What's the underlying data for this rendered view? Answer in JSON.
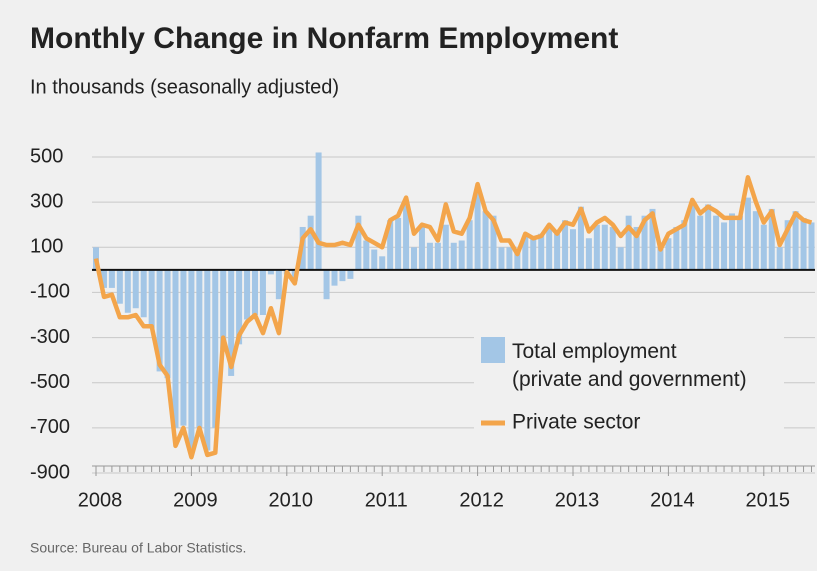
{
  "chart_data": {
    "type": "bar-line",
    "title": "Monthly Change in Nonfarm Employment",
    "subtitle": "In thousands (seasonally adjusted)",
    "source": "Source: Bureau of Labor Statistics.",
    "categories": [
      "2008",
      null,
      null,
      null,
      null,
      null,
      null,
      null,
      null,
      null,
      null,
      null,
      "2009",
      null,
      null,
      null,
      null,
      null,
      null,
      null,
      null,
      null,
      null,
      null,
      "2010",
      null,
      null,
      null,
      null,
      null,
      null,
      null,
      null,
      null,
      null,
      null,
      "2011",
      null,
      null,
      null,
      null,
      null,
      null,
      null,
      null,
      null,
      null,
      null,
      "2012",
      null,
      null,
      null,
      null,
      null,
      null,
      null,
      null,
      null,
      null,
      null,
      "2013",
      null,
      null,
      null,
      null,
      null,
      null,
      null,
      null,
      null,
      null,
      null,
      "2014",
      null,
      null,
      null,
      null,
      null,
      null,
      null,
      null,
      null,
      null,
      null,
      "2015",
      null,
      null,
      null,
      null,
      null,
      null
    ],
    "series": [
      {
        "name": "Total employment (private and government)",
        "type": "bar",
        "color": "#a3c6e6",
        "values": [
          100,
          -80,
          -80,
          -150,
          -190,
          -170,
          -210,
          -260,
          -450,
          -480,
          -700,
          -690,
          -790,
          -700,
          -800,
          -700,
          -350,
          -470,
          -330,
          -220,
          -200,
          -200,
          -20,
          -130,
          -20,
          -50,
          190,
          240,
          520,
          -130,
          -70,
          -50,
          -40,
          240,
          130,
          90,
          60,
          220,
          230,
          300,
          100,
          200,
          120,
          120,
          200,
          120,
          130,
          220,
          360,
          260,
          240,
          100,
          100,
          80,
          150,
          150,
          160,
          200,
          160,
          220,
          180,
          280,
          140,
          200,
          200,
          190,
          100,
          240,
          190,
          240,
          270,
          100,
          140,
          190,
          220,
          300,
          240,
          290,
          240,
          210,
          250,
          240,
          320,
          260,
          200,
          270,
          100,
          220,
          260,
          230,
          210
        ]
      },
      {
        "name": "Private sector",
        "type": "line",
        "color": "#f3a54b",
        "values": [
          50,
          -120,
          -110,
          -210,
          -210,
          -200,
          -250,
          -250,
          -420,
          -470,
          -780,
          -700,
          -830,
          -700,
          -820,
          -810,
          -300,
          -430,
          -290,
          -230,
          -200,
          -280,
          -170,
          -280,
          -10,
          -60,
          140,
          180,
          120,
          110,
          110,
          120,
          110,
          200,
          140,
          120,
          100,
          220,
          240,
          320,
          160,
          200,
          190,
          130,
          290,
          170,
          160,
          230,
          380,
          260,
          220,
          130,
          130,
          70,
          160,
          140,
          150,
          200,
          160,
          210,
          200,
          270,
          170,
          210,
          230,
          200,
          150,
          190,
          150,
          220,
          250,
          90,
          160,
          180,
          200,
          310,
          250,
          280,
          260,
          230,
          230,
          230,
          410,
          300,
          210,
          260,
          110,
          180,
          250,
          220,
          210
        ]
      }
    ],
    "ylim": [
      -900,
      500
    ],
    "yticks": [
      500,
      300,
      100,
      -100,
      -300,
      -500,
      -700,
      -900
    ],
    "grid": true
  }
}
